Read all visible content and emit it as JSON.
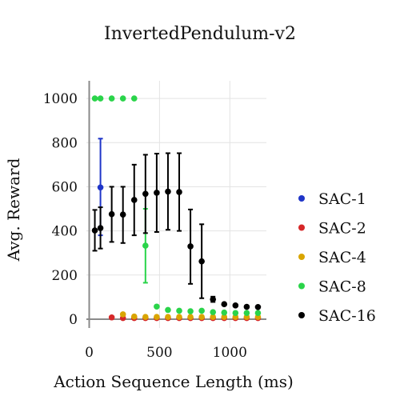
{
  "chart_data": {
    "type": "scatter",
    "title": "InvertedPendulum-v2",
    "xlabel": "Action Sequence Length (ms)",
    "ylabel": "Avg. Reward",
    "xlim": [
      -20,
      1260
    ],
    "ylim": [
      -40,
      1080
    ],
    "xticks": [
      0,
      500,
      1000
    ],
    "yticks": [
      0,
      200,
      400,
      600,
      800,
      1000
    ],
    "grid": true,
    "legend_position": "right",
    "series": [
      {
        "name": "SAC-1",
        "color": "#1f35c8",
        "points": [
          {
            "x": 80,
            "y": 597,
            "low": 380,
            "high": 818
          }
        ]
      },
      {
        "name": "SAC-2",
        "color": "#d62728",
        "points": [
          {
            "x": 160,
            "y": 8
          },
          {
            "x": 240,
            "y": 5
          },
          {
            "x": 320,
            "y": 5
          },
          {
            "x": 400,
            "y": 5
          },
          {
            "x": 480,
            "y": 5
          },
          {
            "x": 560,
            "y": 5
          },
          {
            "x": 640,
            "y": 5
          },
          {
            "x": 720,
            "y": 5
          },
          {
            "x": 800,
            "y": 5
          },
          {
            "x": 880,
            "y": 5
          },
          {
            "x": 960,
            "y": 5
          },
          {
            "x": 1040,
            "y": 5
          },
          {
            "x": 1120,
            "y": 5
          },
          {
            "x": 1200,
            "y": 5
          }
        ]
      },
      {
        "name": "SAC-4",
        "color": "#d9a500",
        "points": [
          {
            "x": 240,
            "y": 22
          },
          {
            "x": 320,
            "y": 12
          },
          {
            "x": 400,
            "y": 10
          },
          {
            "x": 480,
            "y": 10
          },
          {
            "x": 560,
            "y": 10
          },
          {
            "x": 640,
            "y": 10
          },
          {
            "x": 720,
            "y": 10
          },
          {
            "x": 800,
            "y": 10
          },
          {
            "x": 880,
            "y": 10
          },
          {
            "x": 960,
            "y": 10
          },
          {
            "x": 1040,
            "y": 10
          },
          {
            "x": 1120,
            "y": 10
          },
          {
            "x": 1200,
            "y": 10
          }
        ]
      },
      {
        "name": "SAC-8",
        "color": "#2ad44a",
        "points": [
          {
            "x": 40,
            "y": 1000
          },
          {
            "x": 80,
            "y": 1000
          },
          {
            "x": 160,
            "y": 1000
          },
          {
            "x": 240,
            "y": 1000
          },
          {
            "x": 320,
            "y": 1000
          },
          {
            "x": 400,
            "y": 333,
            "low": 165,
            "high": 500
          },
          {
            "x": 480,
            "y": 57
          },
          {
            "x": 560,
            "y": 42
          },
          {
            "x": 640,
            "y": 38
          },
          {
            "x": 720,
            "y": 36
          },
          {
            "x": 800,
            "y": 38
          },
          {
            "x": 880,
            "y": 32
          },
          {
            "x": 960,
            "y": 30
          },
          {
            "x": 1040,
            "y": 28
          },
          {
            "x": 1120,
            "y": 28
          },
          {
            "x": 1200,
            "y": 28
          }
        ]
      },
      {
        "name": "SAC-16",
        "color": "#000000",
        "points": [
          {
            "x": 40,
            "y": 402,
            "low": 310,
            "high": 495
          },
          {
            "x": 80,
            "y": 413,
            "low": 320,
            "high": 507
          },
          {
            "x": 160,
            "y": 476,
            "low": 350,
            "high": 600
          },
          {
            "x": 240,
            "y": 474,
            "low": 345,
            "high": 600
          },
          {
            "x": 320,
            "y": 540,
            "low": 380,
            "high": 700
          },
          {
            "x": 400,
            "y": 568,
            "low": 390,
            "high": 745
          },
          {
            "x": 480,
            "y": 573,
            "low": 395,
            "high": 750
          },
          {
            "x": 560,
            "y": 578,
            "low": 405,
            "high": 752
          },
          {
            "x": 640,
            "y": 576,
            "low": 400,
            "high": 752
          },
          {
            "x": 720,
            "y": 330,
            "low": 160,
            "high": 497
          },
          {
            "x": 800,
            "y": 262,
            "low": 95,
            "high": 430
          },
          {
            "x": 880,
            "y": 90,
            "low": 78,
            "high": 102
          },
          {
            "x": 960,
            "y": 68
          },
          {
            "x": 1040,
            "y": 62
          },
          {
            "x": 1120,
            "y": 56
          },
          {
            "x": 1200,
            "y": 55
          }
        ]
      }
    ]
  }
}
